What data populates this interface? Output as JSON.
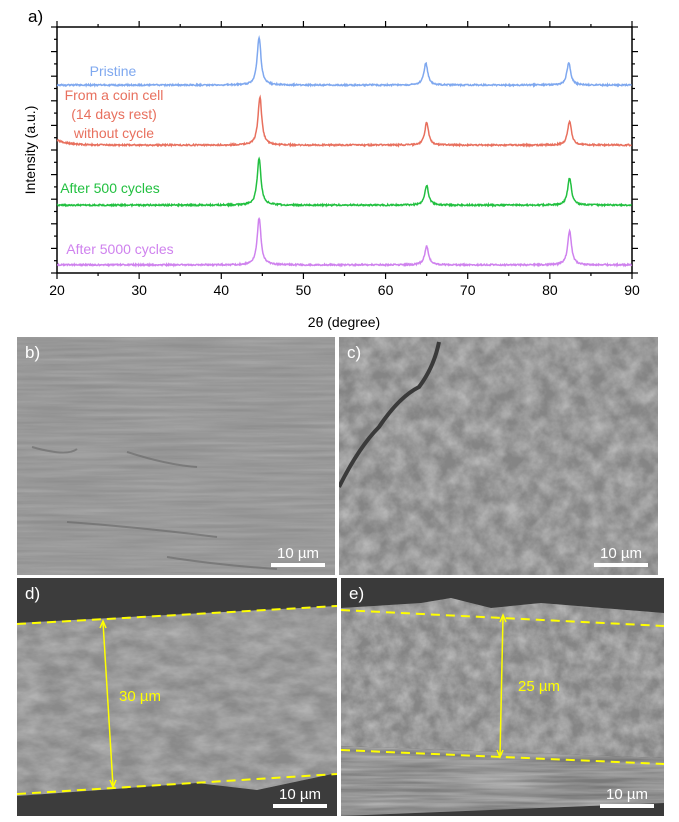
{
  "chart_data": {
    "type": "line",
    "panel_label": "a)",
    "xlabel": "2θ (degree)",
    "ylabel": "Intensity (a.u.)",
    "xlim": [
      20,
      90
    ],
    "ylim": [
      0,
      100
    ],
    "xticks": [
      20,
      30,
      40,
      50,
      60,
      70,
      80,
      90
    ],
    "grid": false,
    "legend": "inline labels at left of each trace",
    "series": [
      {
        "name": "Pristine",
        "label_lines": [
          "Pristine"
        ],
        "color": "#7fa8ef",
        "offset": 76.4,
        "peaks": [
          {
            "x": 44.6,
            "h": 19.5
          },
          {
            "x": 64.9,
            "h": 9.0
          },
          {
            "x": 82.3,
            "h": 9.0
          }
        ]
      },
      {
        "name": "From a coin cell (14 days rest) without cycle",
        "label_lines": [
          "From a coin cell",
          "(14 days rest)",
          "without cycle"
        ],
        "color": "#e8705e",
        "offset": 52.0,
        "peaks": [
          {
            "x": 44.7,
            "h": 19.5
          },
          {
            "x": 65.0,
            "h": 9.3
          },
          {
            "x": 82.4,
            "h": 9.8
          }
        ]
      },
      {
        "name": "After 500 cycles",
        "label_lines": [
          "After 500 cycles"
        ],
        "color": "#22c040",
        "offset": 27.6,
        "peaks": [
          {
            "x": 44.6,
            "h": 19.0
          },
          {
            "x": 65.0,
            "h": 8.0
          },
          {
            "x": 82.4,
            "h": 11.0
          }
        ]
      },
      {
        "name": "After 5000 cycles",
        "label_lines": [
          "After 5000 cycles"
        ],
        "color": "#cf82ee",
        "offset": 3.3,
        "peaks": [
          {
            "x": 44.6,
            "h": 19.0
          },
          {
            "x": 65.0,
            "h": 7.7
          },
          {
            "x": 82.4,
            "h": 13.8
          }
        ]
      }
    ]
  },
  "sem_panels": [
    {
      "label": "b)",
      "scale_bar": "10 µm"
    },
    {
      "label": "c)",
      "scale_bar": "10 µm"
    },
    {
      "label": "d)",
      "scale_bar": "10 µm",
      "thickness": "30 µm"
    },
    {
      "label": "e)",
      "scale_bar": "10 µm",
      "thickness": "25 µm"
    }
  ],
  "colors": {
    "measure": "#ffff00"
  }
}
